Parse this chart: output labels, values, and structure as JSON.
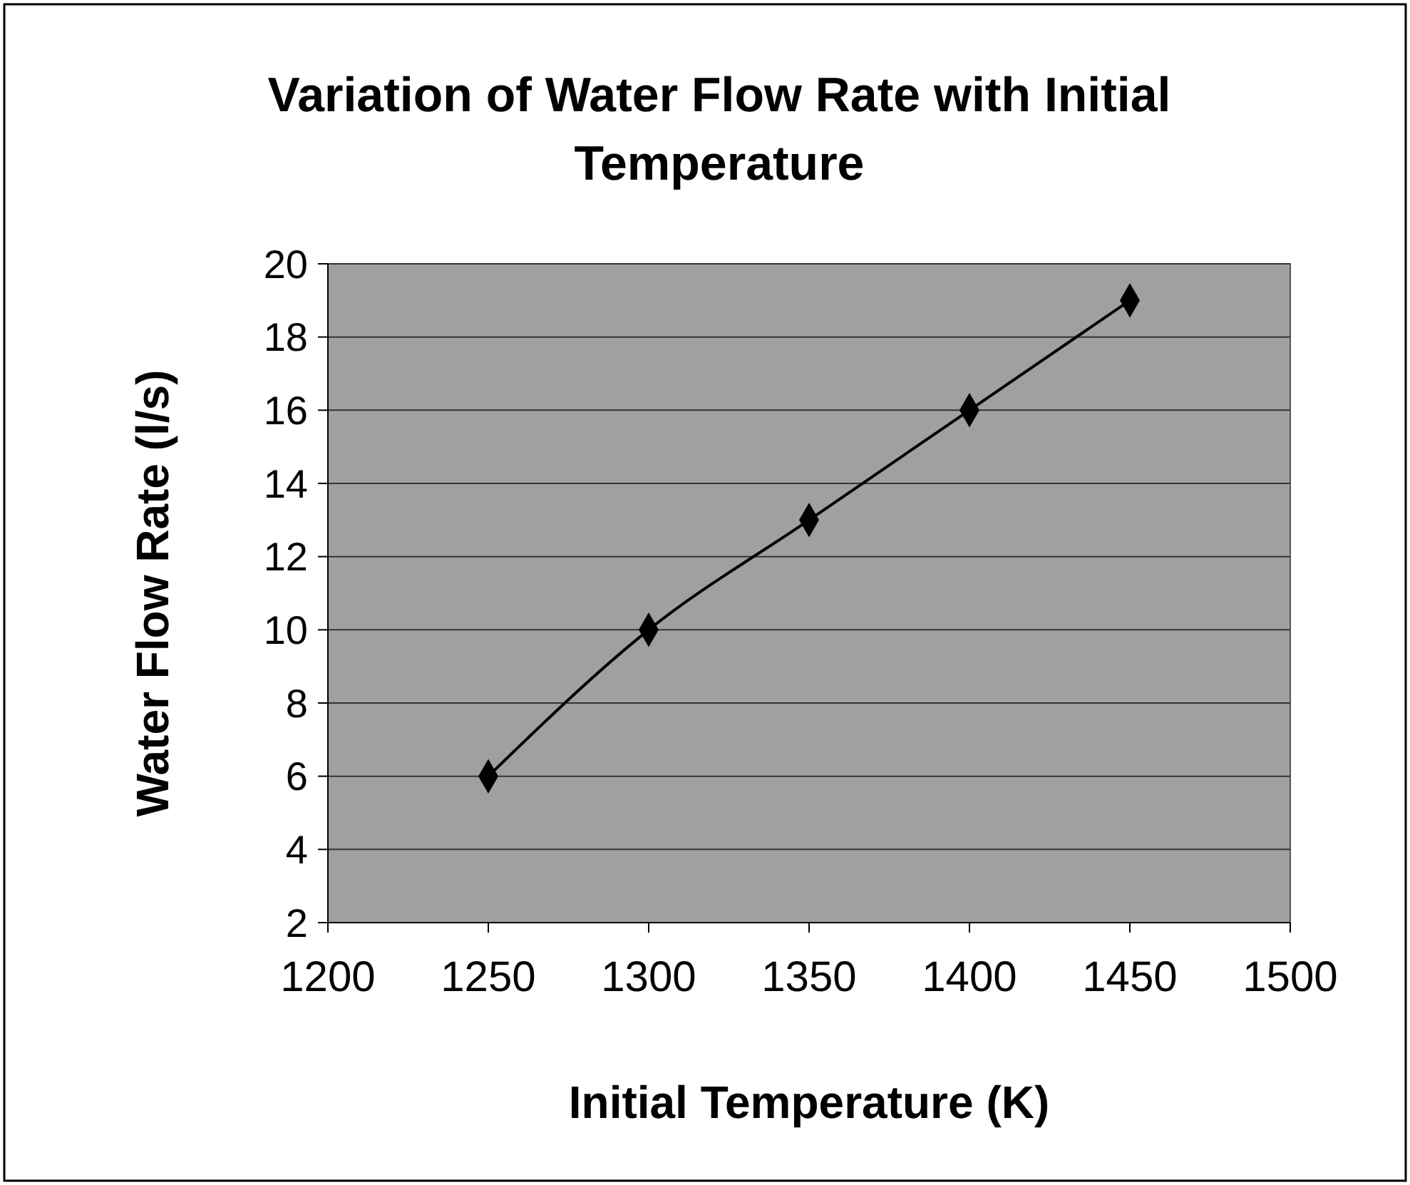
{
  "chart_data": {
    "type": "line",
    "title": "Variation of Water Flow Rate with Initial Temperature",
    "xlabel": "Initial Temperature (K)",
    "ylabel": "Water Flow Rate (l/s)",
    "x": [
      1250,
      1300,
      1350,
      1400,
      1450
    ],
    "series": [
      {
        "color": "#000000",
        "values": [
          6,
          10,
          13,
          16,
          19
        ]
      }
    ],
    "xlim": [
      1200,
      1500
    ],
    "xticks": [
      1200,
      1250,
      1300,
      1350,
      1400,
      1450,
      1500
    ],
    "ylim": [
      2,
      20
    ],
    "yticks": [
      2,
      4,
      6,
      8,
      10,
      12,
      14,
      16,
      18,
      20
    ],
    "grid": "y",
    "marker": "diamond",
    "line_style": "solid"
  }
}
